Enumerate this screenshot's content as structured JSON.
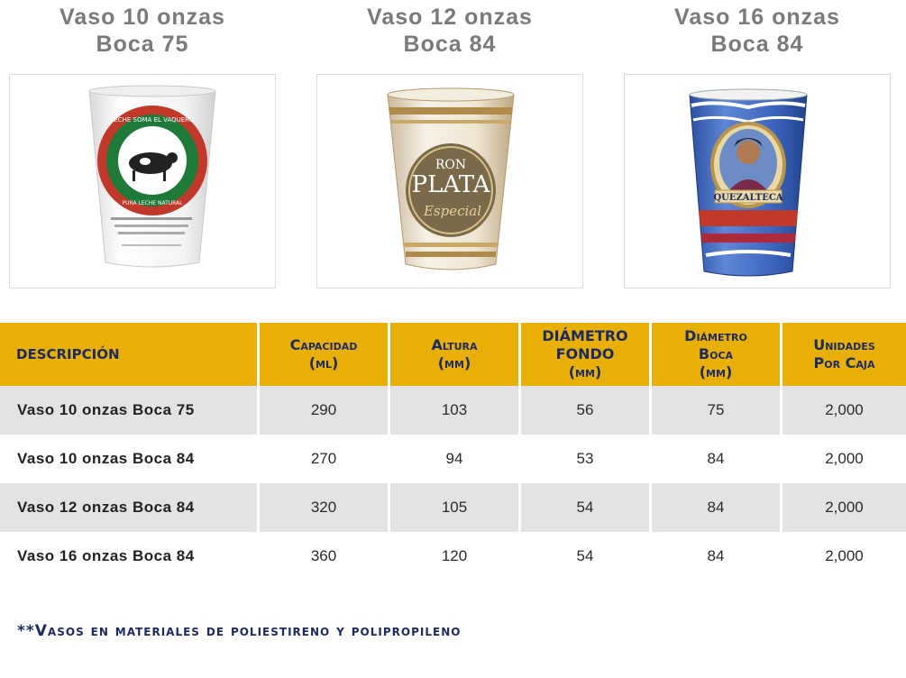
{
  "products": [
    {
      "title_line1": "Vaso 10 onzas",
      "title_line2": "Boca 75",
      "image": "white cup with cow logo",
      "print_top": "LECHE SOMA EL VAQUERO",
      "print_bottom": "PURA LECHE NATURAL"
    },
    {
      "title_line1": "Vaso 12 onzas",
      "title_line2": "Boca 84",
      "image": "clear cup with gold rum label",
      "print_line1": "RON",
      "print_line2": "PLATA",
      "print_line3": "Especial"
    },
    {
      "title_line1": "Vaso 16 onzas",
      "title_line2": "Boca 84",
      "image": "blue cup with portrait label",
      "print_label": "QUEZALTECA"
    }
  ],
  "table": {
    "headers": [
      {
        "line1": "DESCRIPCIÓN"
      },
      {
        "line1": "Capacidad",
        "line2": "(ml)"
      },
      {
        "line1": "Altura",
        "line2": "(mm)"
      },
      {
        "line1": "DIÁMETRO",
        "line2": "FONDO",
        "line3": "(mm)"
      },
      {
        "line1": "Diámetro",
        "line2": "Boca",
        "line3": "(mm)"
      },
      {
        "line1": "Unidades",
        "line2": "Por Caja"
      }
    ],
    "rows": [
      [
        "Vaso 10 onzas Boca 75",
        "290",
        "103",
        "56",
        "75",
        "2,000"
      ],
      [
        "Vaso 10 onzas Boca 84",
        "270",
        "94",
        "53",
        "84",
        "2,000"
      ],
      [
        "Vaso 12 onzas Boca 84",
        "320",
        "105",
        "54",
        "84",
        "2,000"
      ],
      [
        "Vaso 16 onzas Boca 84",
        "360",
        "120",
        "54",
        "84",
        "2,000"
      ]
    ]
  },
  "footnote": "**Vasos en materiales de poliestireno y polipropileno",
  "colors": {
    "header_bg": "#e8b007",
    "header_text": "#1c2a5e",
    "row_shade": "#e3e3e3",
    "title_gray": "#7a7a7a"
  }
}
